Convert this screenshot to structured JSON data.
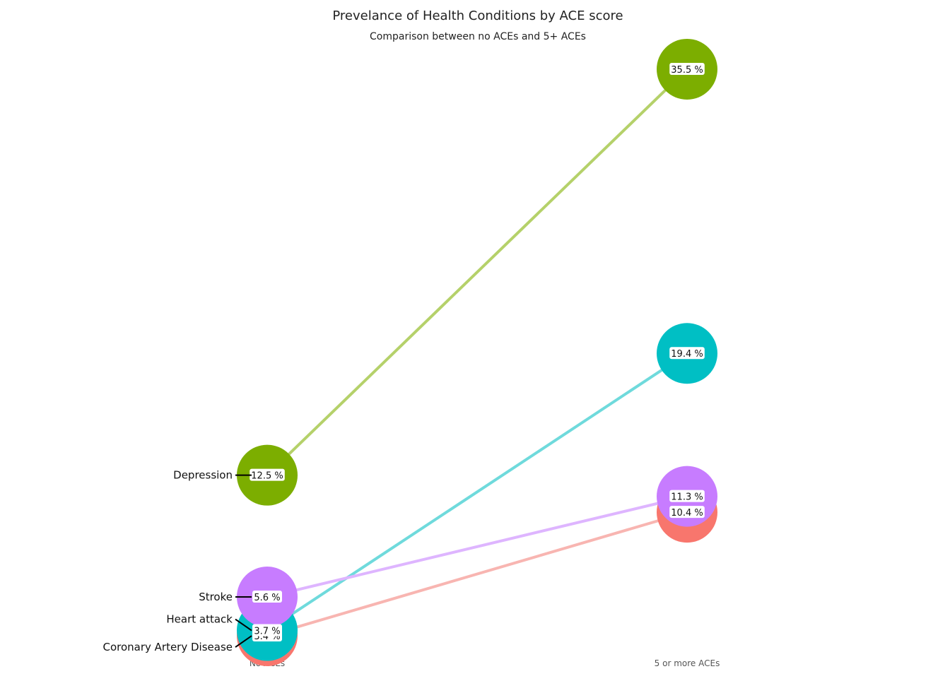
{
  "chart_data": {
    "type": "line",
    "title": "Prevelance of Health Conditions by ACE score",
    "subtitle": "Comparison between no ACEs and 5+ ACEs",
    "categories": [
      "No ACEs",
      "5 or more ACEs"
    ],
    "ylim": [
      2.6,
      36.5
    ],
    "grid": false,
    "series": [
      {
        "name": "Coronary Artery Disease",
        "values": [
          3.4,
          10.4
        ],
        "color": "#F8766D",
        "line_color": "#F8B5B1",
        "labels": [
          "3.4 %",
          "10.4 %"
        ]
      },
      {
        "name": "Heart attack",
        "values": [
          3.7,
          19.4
        ],
        "color": "#00BFC4",
        "line_color": "#6FDADC",
        "labels": [
          "3.7 %",
          "19.4 %"
        ]
      },
      {
        "name": "Depression",
        "values": [
          12.5,
          35.5
        ],
        "color": "#7CAE00",
        "line_color": "#B5D16A",
        "labels": [
          "12.5 %",
          "35.5 %"
        ]
      },
      {
        "name": "Stroke",
        "values": [
          5.6,
          11.3
        ],
        "color": "#C77CFF",
        "line_color": "#DEB5FF",
        "labels": [
          "5.6 %",
          "11.3 %"
        ]
      }
    ]
  }
}
